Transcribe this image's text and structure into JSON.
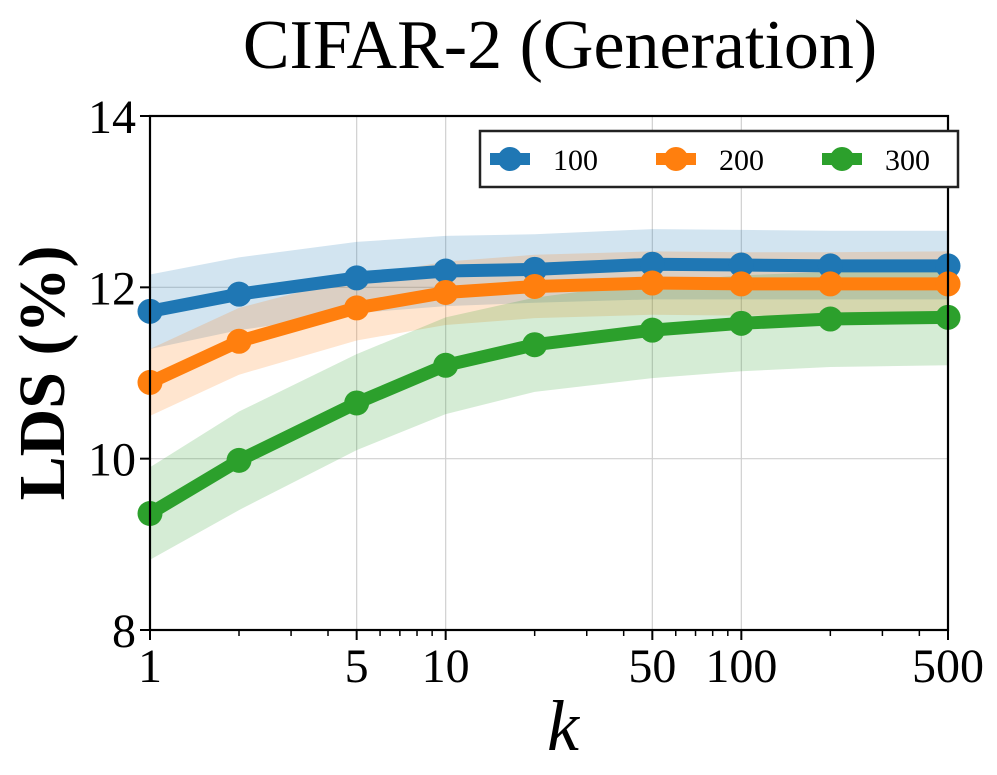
{
  "chart_data": {
    "type": "line",
    "title": "CIFAR-2 (Generation)",
    "xlabel": "k",
    "ylabel": "LDS (%)",
    "xscale": "log",
    "xlim": [
      1,
      500
    ],
    "ylim": [
      8,
      14
    ],
    "grid": true,
    "legend_position": "top-right",
    "x": [
      1,
      2,
      5,
      10,
      20,
      50,
      100,
      200,
      500
    ],
    "xticks": [
      1,
      5,
      10,
      50,
      100,
      500
    ],
    "xtick_labels": [
      "1",
      "5",
      "10",
      "50",
      "100",
      "500"
    ],
    "yticks": [
      8,
      10,
      12,
      14
    ],
    "ytick_labels": [
      "8",
      "10",
      "12",
      "14"
    ],
    "series": [
      {
        "name": "100",
        "color": "#1f77b4",
        "values": [
          11.72,
          11.92,
          12.11,
          12.19,
          12.21,
          12.27,
          12.26,
          12.25,
          12.25
        ],
        "lower": [
          11.28,
          11.5,
          11.7,
          11.78,
          11.82,
          11.86,
          11.86,
          11.86,
          11.86
        ],
        "upper": [
          12.15,
          12.35,
          12.53,
          12.6,
          12.62,
          12.68,
          12.67,
          12.66,
          12.66
        ]
      },
      {
        "name": "200",
        "color": "#ff7f0e",
        "values": [
          10.89,
          11.37,
          11.76,
          11.94,
          12.01,
          12.05,
          12.04,
          12.04,
          12.04
        ],
        "lower": [
          10.5,
          10.98,
          11.38,
          11.56,
          11.64,
          11.68,
          11.67,
          11.67,
          11.67
        ],
        "upper": [
          11.28,
          11.76,
          12.12,
          12.3,
          12.38,
          12.42,
          12.41,
          12.41,
          12.42
        ]
      },
      {
        "name": "300",
        "color": "#2ca02c",
        "values": [
          9.36,
          9.98,
          10.65,
          11.09,
          11.33,
          11.5,
          11.58,
          11.63,
          11.65
        ],
        "lower": [
          8.82,
          9.4,
          10.1,
          10.52,
          10.78,
          10.94,
          11.02,
          11.07,
          11.09
        ],
        "upper": [
          9.9,
          10.55,
          11.22,
          11.65,
          11.88,
          12.06,
          12.14,
          12.18,
          12.2
        ]
      }
    ]
  }
}
